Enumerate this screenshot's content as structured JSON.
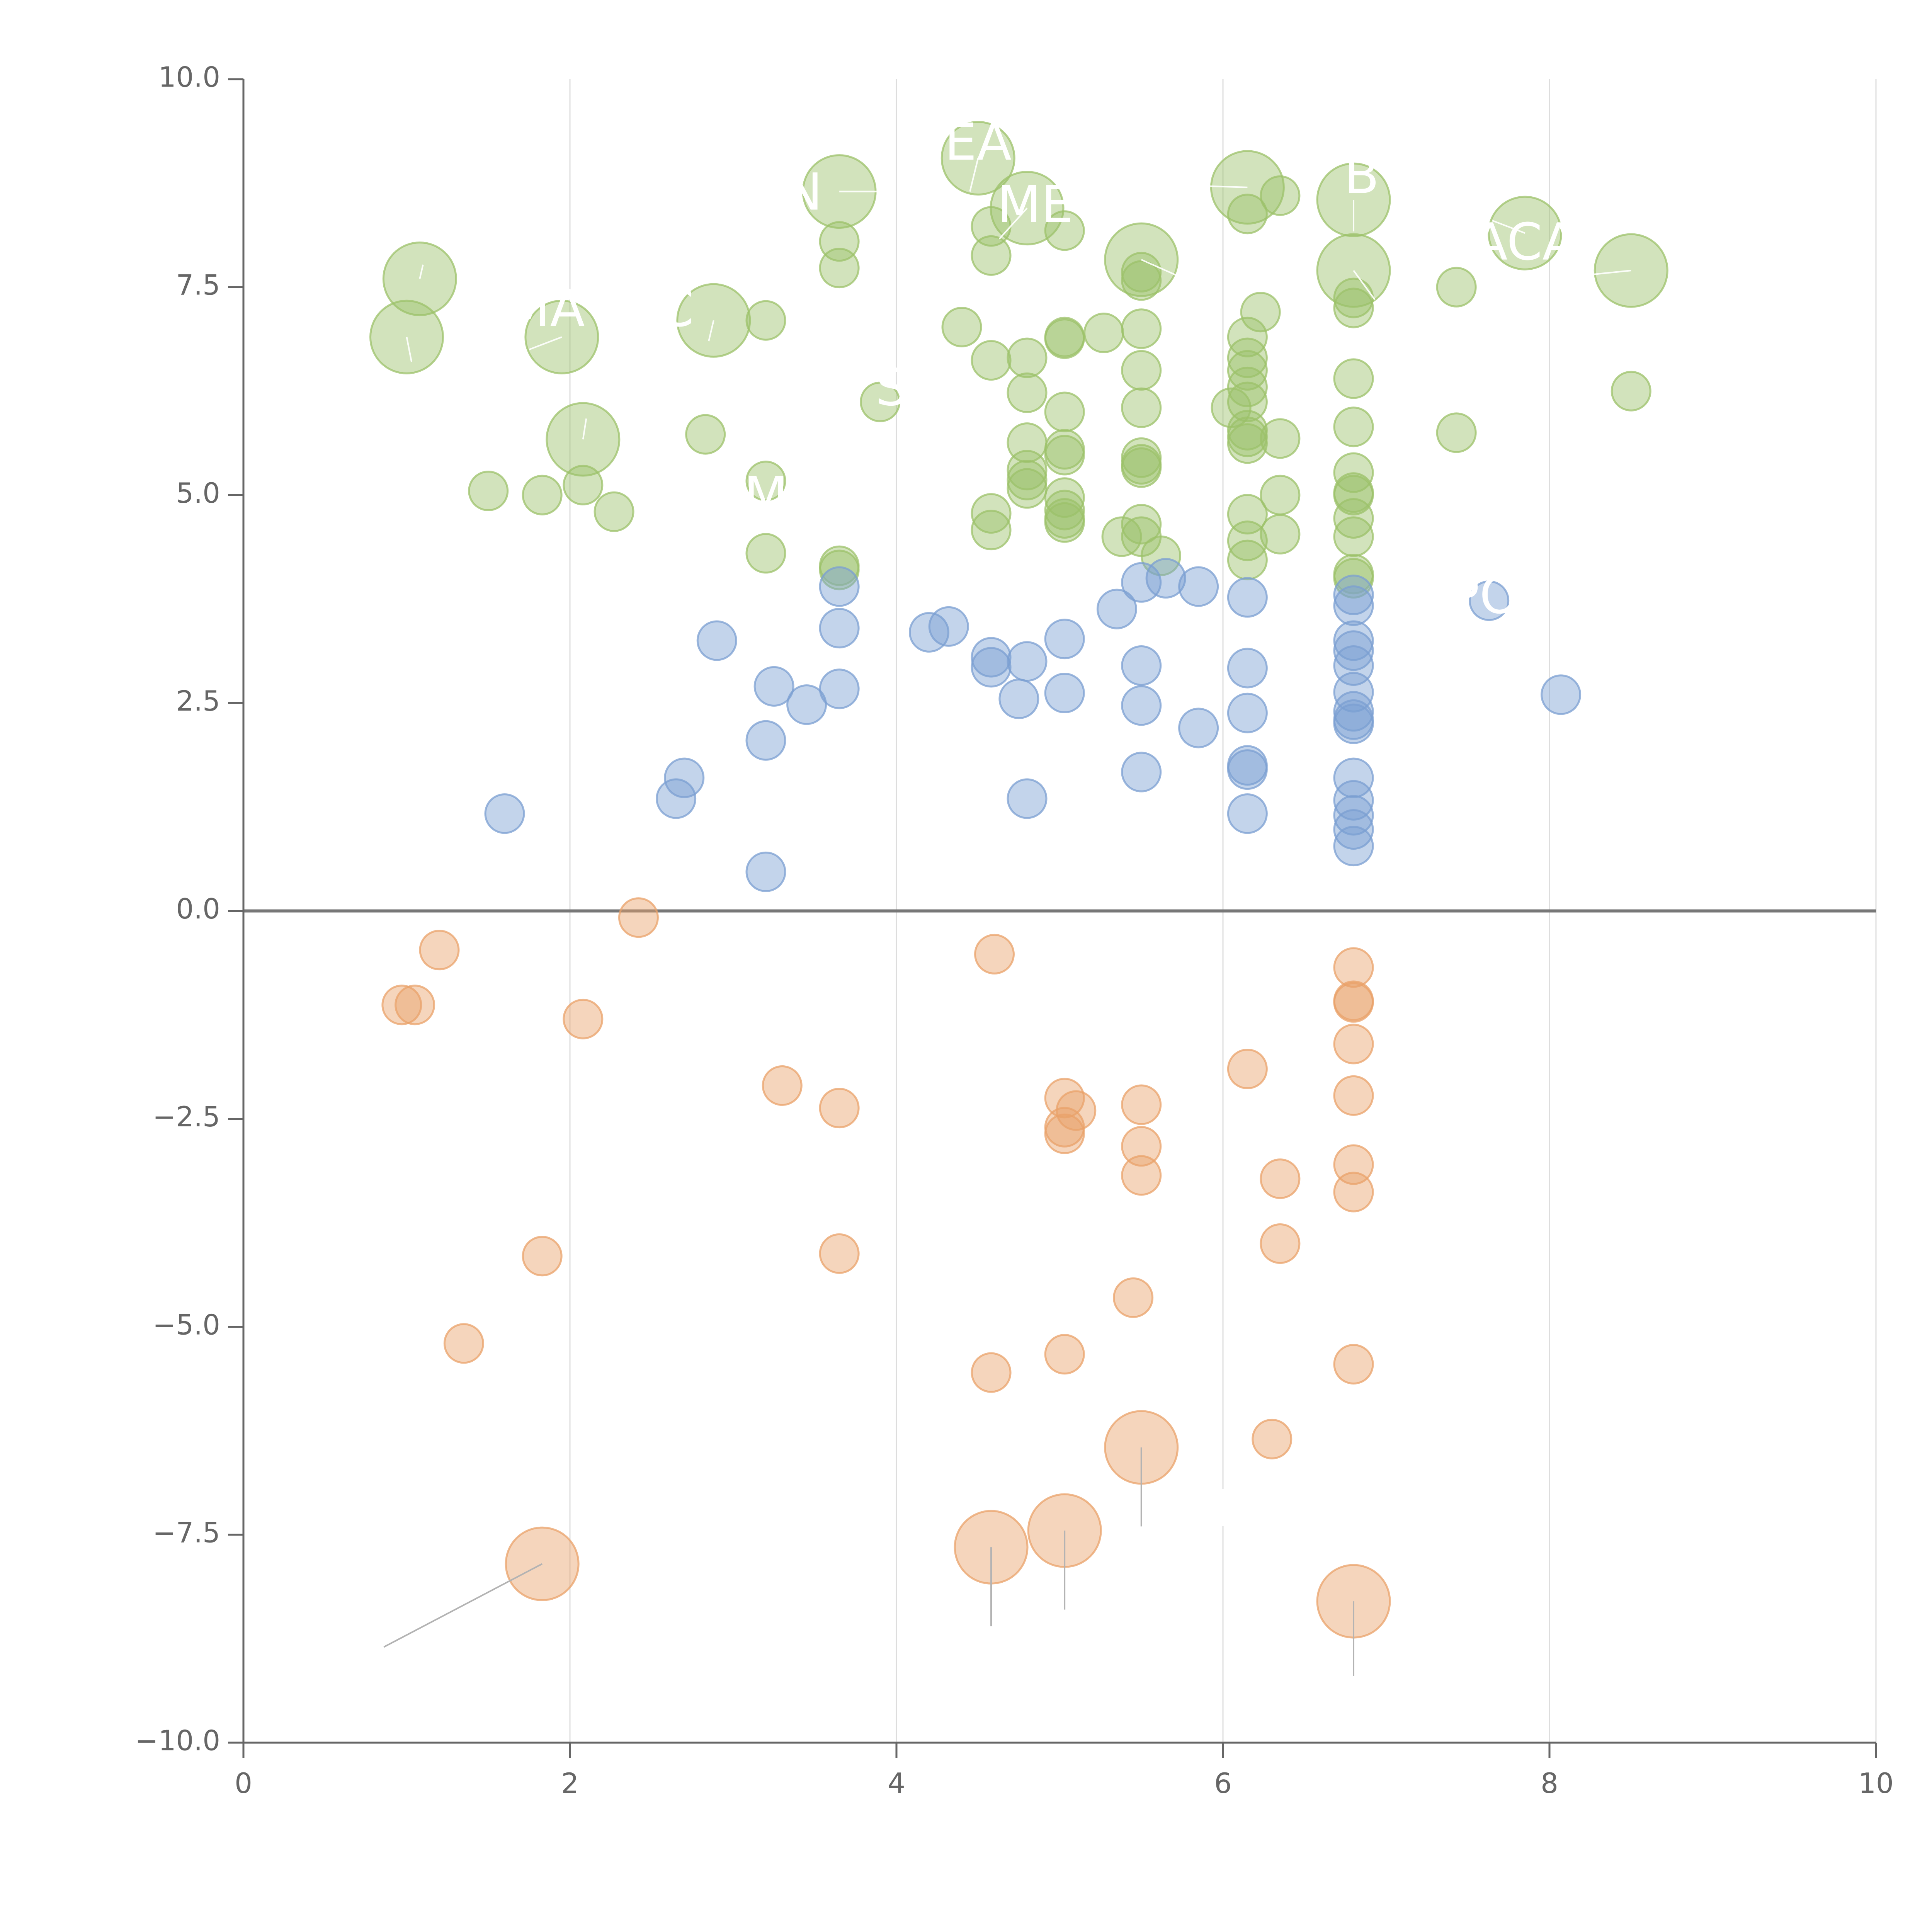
{
  "colors": {
    "green": "#9cc26a",
    "blue": "#7b9fd2",
    "orange": "#e9a16a",
    "label": "#ffffff",
    "leader_light": "#ffffff",
    "leader_dark": "#b3b3b3",
    "axis": "#666666",
    "grid": "#dddddd"
  },
  "chart_data": {
    "type": "scatter",
    "xlim": [
      0,
      10
    ],
    "ylim": [
      -10,
      10
    ],
    "x_ticks": [
      "0",
      "2",
      "4",
      "6",
      "8",
      "10"
    ],
    "y_ticks": [
      "−10.0",
      "−7.5",
      "−5.0",
      "−2.5",
      "0.0",
      "2.5",
      "5.0",
      "7.5",
      "10.0"
    ],
    "grid": "vertical",
    "reference_line_y": 0,
    "series": [
      {
        "color": "green",
        "points": [
          [
            1.08,
            7.6,
            2
          ],
          [
            1.0,
            6.9,
            2
          ],
          [
            1.95,
            6.9,
            2
          ],
          [
            2.08,
            5.67,
            2
          ],
          [
            2.88,
            7.1,
            2
          ],
          [
            3.65,
            8.65,
            2
          ],
          [
            4.5,
            9.05,
            2
          ],
          [
            4.8,
            8.45,
            2
          ],
          [
            5.5,
            7.83,
            2
          ],
          [
            6.15,
            8.7,
            2
          ],
          [
            6.8,
            8.55,
            2
          ],
          [
            6.8,
            7.7,
            2
          ],
          [
            7.85,
            8.15,
            2
          ],
          [
            8.5,
            7.7,
            2
          ],
          [
            1.5,
            5.05,
            1
          ],
          [
            1.83,
            5.0,
            1
          ],
          [
            2.08,
            5.12,
            1
          ],
          [
            2.27,
            4.8,
            1
          ],
          [
            2.83,
            5.73,
            1
          ],
          [
            3.2,
            7.1,
            1
          ],
          [
            3.2,
            5.17,
            1
          ],
          [
            3.2,
            4.3,
            1
          ],
          [
            3.65,
            8.05,
            1
          ],
          [
            3.65,
            7.73,
            1
          ],
          [
            3.65,
            4.15,
            1
          ],
          [
            3.65,
            4.1,
            1
          ],
          [
            3.9,
            6.12,
            1
          ],
          [
            4.4,
            7.02,
            1
          ],
          [
            4.58,
            8.23,
            1
          ],
          [
            4.58,
            7.88,
            1
          ],
          [
            4.58,
            6.62,
            1
          ],
          [
            4.58,
            4.78,
            1
          ],
          [
            4.58,
            4.58,
            1
          ],
          [
            4.8,
            6.65,
            1
          ],
          [
            4.8,
            6.23,
            1
          ],
          [
            4.8,
            5.63,
            1
          ],
          [
            4.8,
            5.3,
            1
          ],
          [
            4.8,
            5.18,
            1
          ],
          [
            4.8,
            5.08,
            1
          ],
          [
            5.03,
            8.18,
            1
          ],
          [
            5.03,
            6.9,
            1
          ],
          [
            5.03,
            6.88,
            1
          ],
          [
            5.03,
            6.0,
            1
          ],
          [
            5.03,
            5.55,
            1
          ],
          [
            5.03,
            5.48,
            1
          ],
          [
            5.03,
            4.97,
            1
          ],
          [
            5.03,
            4.82,
            1
          ],
          [
            5.03,
            4.72,
            1
          ],
          [
            5.03,
            4.67,
            1
          ],
          [
            5.27,
            6.95,
            1
          ],
          [
            5.38,
            4.5,
            1
          ],
          [
            5.5,
            7.68,
            1
          ],
          [
            5.5,
            7.58,
            1
          ],
          [
            5.5,
            7.0,
            1
          ],
          [
            5.5,
            6.5,
            1
          ],
          [
            5.5,
            6.05,
            1
          ],
          [
            5.5,
            5.45,
            1
          ],
          [
            5.5,
            5.37,
            1
          ],
          [
            5.5,
            5.33,
            1
          ],
          [
            5.5,
            4.65,
            1
          ],
          [
            5.5,
            4.5,
            1
          ],
          [
            5.62,
            4.27,
            1
          ],
          [
            6.05,
            6.05,
            1
          ],
          [
            6.15,
            8.38,
            1
          ],
          [
            6.15,
            6.9,
            1
          ],
          [
            6.15,
            6.65,
            1
          ],
          [
            6.15,
            6.5,
            1
          ],
          [
            6.15,
            6.3,
            1
          ],
          [
            6.15,
            6.12,
            1
          ],
          [
            6.15,
            5.78,
            1
          ],
          [
            6.15,
            5.7,
            1
          ],
          [
            6.15,
            5.62,
            1
          ],
          [
            6.15,
            4.77,
            1
          ],
          [
            6.15,
            4.45,
            1
          ],
          [
            6.15,
            4.22,
            1
          ],
          [
            6.23,
            7.2,
            1
          ],
          [
            6.35,
            8.6,
            1
          ],
          [
            6.35,
            5.68,
            1
          ],
          [
            6.35,
            5.0,
            1
          ],
          [
            6.35,
            4.53,
            1
          ],
          [
            6.8,
            7.37,
            1
          ],
          [
            6.8,
            7.25,
            1
          ],
          [
            6.8,
            6.4,
            1
          ],
          [
            6.8,
            5.82,
            1
          ],
          [
            6.8,
            5.27,
            1
          ],
          [
            6.8,
            5.03,
            1
          ],
          [
            6.8,
            5.0,
            1
          ],
          [
            6.8,
            4.72,
            1
          ],
          [
            6.8,
            4.5,
            1
          ],
          [
            6.8,
            4.05,
            1
          ],
          [
            6.8,
            4.0,
            1
          ],
          [
            7.43,
            7.5,
            1
          ],
          [
            7.43,
            5.75,
            1
          ],
          [
            8.5,
            6.25,
            1
          ]
        ]
      },
      {
        "color": "blue",
        "points": [
          [
            1.6,
            1.17,
            1
          ],
          [
            2.65,
            1.35,
            1
          ],
          [
            2.7,
            1.6,
            1
          ],
          [
            2.9,
            3.25,
            1
          ],
          [
            3.2,
            2.05,
            1
          ],
          [
            3.2,
            0.47,
            1
          ],
          [
            3.25,
            2.7,
            1
          ],
          [
            3.45,
            2.48,
            1
          ],
          [
            3.65,
            3.9,
            1
          ],
          [
            3.65,
            3.4,
            1
          ],
          [
            3.65,
            2.67,
            1
          ],
          [
            4.2,
            3.35,
            1
          ],
          [
            4.32,
            3.42,
            1
          ],
          [
            4.58,
            3.05,
            1
          ],
          [
            4.58,
            2.93,
            1
          ],
          [
            4.75,
            2.55,
            1
          ],
          [
            4.8,
            3.0,
            1
          ],
          [
            4.8,
            1.35,
            1
          ],
          [
            5.03,
            3.27,
            1
          ],
          [
            5.03,
            2.62,
            1
          ],
          [
            5.35,
            3.63,
            1
          ],
          [
            5.5,
            3.95,
            1
          ],
          [
            5.5,
            2.95,
            1
          ],
          [
            5.5,
            2.47,
            1
          ],
          [
            5.5,
            1.67,
            1
          ],
          [
            5.65,
            4.0,
            1
          ],
          [
            5.85,
            3.9,
            1
          ],
          [
            5.85,
            2.2,
            1
          ],
          [
            6.15,
            3.77,
            1
          ],
          [
            6.15,
            2.92,
            1
          ],
          [
            6.15,
            2.38,
            1
          ],
          [
            6.15,
            1.75,
            1
          ],
          [
            6.15,
            1.7,
            1
          ],
          [
            6.15,
            1.17,
            1
          ],
          [
            6.8,
            3.8,
            1
          ],
          [
            6.8,
            3.67,
            1
          ],
          [
            6.8,
            3.25,
            1
          ],
          [
            6.8,
            3.13,
            1
          ],
          [
            6.8,
            2.95,
            1
          ],
          [
            6.8,
            2.63,
            1
          ],
          [
            6.8,
            2.4,
            1
          ],
          [
            6.8,
            2.3,
            1
          ],
          [
            6.8,
            2.25,
            1
          ],
          [
            6.8,
            1.6,
            1
          ],
          [
            6.8,
            1.33,
            1
          ],
          [
            6.8,
            1.15,
            1
          ],
          [
            6.8,
            0.98,
            1
          ],
          [
            6.8,
            0.78,
            1
          ],
          [
            7.63,
            3.73,
            1
          ],
          [
            8.07,
            2.6,
            1
          ]
        ]
      },
      {
        "color": "orange",
        "points": [
          [
            0.97,
            -1.13,
            1
          ],
          [
            1.05,
            -1.13,
            1
          ],
          [
            1.2,
            -0.47,
            1
          ],
          [
            1.35,
            -5.2,
            1
          ],
          [
            1.83,
            -4.15,
            1
          ],
          [
            2.08,
            -1.3,
            1
          ],
          [
            2.42,
            -0.08,
            1
          ],
          [
            3.3,
            -2.1,
            1
          ],
          [
            3.65,
            -2.37,
            1
          ],
          [
            3.65,
            -4.12,
            1
          ],
          [
            4.6,
            -0.52,
            1
          ],
          [
            4.58,
            -5.55,
            1
          ],
          [
            5.03,
            -2.25,
            1
          ],
          [
            5.1,
            -2.4,
            1
          ],
          [
            5.03,
            -2.6,
            1
          ],
          [
            5.03,
            -2.68,
            1
          ],
          [
            5.03,
            -5.33,
            1
          ],
          [
            5.45,
            -4.65,
            1
          ],
          [
            5.5,
            -2.33,
            1
          ],
          [
            5.5,
            -2.83,
            1
          ],
          [
            5.5,
            -3.18,
            1
          ],
          [
            6.15,
            -1.9,
            1
          ],
          [
            6.3,
            -6.35,
            1
          ],
          [
            6.35,
            -3.22,
            1
          ],
          [
            6.35,
            -4.0,
            1
          ],
          [
            6.8,
            -0.68,
            1
          ],
          [
            6.8,
            -1.08,
            1
          ],
          [
            6.8,
            -1.1,
            1
          ],
          [
            6.8,
            -1.6,
            1
          ],
          [
            6.8,
            -2.22,
            1
          ],
          [
            6.8,
            -3.05,
            1
          ],
          [
            6.8,
            -3.38,
            1
          ],
          [
            6.8,
            -5.45,
            1
          ],
          [
            1.83,
            -7.85,
            2
          ],
          [
            4.58,
            -7.65,
            2
          ],
          [
            5.03,
            -7.45,
            2
          ],
          [
            5.5,
            -6.45,
            2
          ],
          [
            6.8,
            -8.3,
            2
          ]
        ]
      }
    ],
    "point_labels": [
      {
        "text": "EA",
        "x": 4.5,
        "y": 9.2
      },
      {
        "text": "N",
        "x": 3.43,
        "y": 8.6
      },
      {
        "text": "ME",
        "x": 4.85,
        "y": 8.45
      },
      {
        "text": "B",
        "x": 6.85,
        "y": 8.8
      },
      {
        "text": "ACA",
        "x": 7.85,
        "y": 8.0
      },
      {
        "text": "MA",
        "x": 1.85,
        "y": 7.2
      },
      {
        "text": "C",
        "x": 2.65,
        "y": 7.2
      },
      {
        "text": "S",
        "x": 3.97,
        "y": 6.25
      },
      {
        "text": "M",
        "x": 3.2,
        "y": 4.95
      },
      {
        "text": "PO",
        "x": 7.6,
        "y": 3.75
      },
      {
        "text": "I",
        "x": 6.0,
        "y": -7.23
      }
    ],
    "leaders": [
      {
        "x1": 1.08,
        "y1": 7.6,
        "x2": 1.1,
        "y2": 7.77,
        "tone": "light"
      },
      {
        "x1": 1.0,
        "y1": 6.9,
        "x2": 1.03,
        "y2": 6.6,
        "tone": "light"
      },
      {
        "x1": 1.95,
        "y1": 6.9,
        "x2": 1.75,
        "y2": 6.75,
        "tone": "light"
      },
      {
        "x1": 2.08,
        "y1": 5.67,
        "x2": 2.1,
        "y2": 5.92,
        "tone": "light"
      },
      {
        "x1": 2.88,
        "y1": 7.1,
        "x2": 2.85,
        "y2": 6.85,
        "tone": "light"
      },
      {
        "x1": 3.65,
        "y1": 8.65,
        "x2": 3.9,
        "y2": 8.65,
        "tone": "light"
      },
      {
        "x1": 4.5,
        "y1": 9.05,
        "x2": 4.45,
        "y2": 8.65,
        "tone": "light"
      },
      {
        "x1": 4.8,
        "y1": 8.45,
        "x2": 4.63,
        "y2": 8.08,
        "tone": "light"
      },
      {
        "x1": 5.5,
        "y1": 7.83,
        "x2": 5.73,
        "y2": 7.63,
        "tone": "light"
      },
      {
        "x1": 6.15,
        "y1": 8.7,
        "x2": 5.8,
        "y2": 8.72,
        "tone": "light"
      },
      {
        "x1": 6.8,
        "y1": 8.55,
        "x2": 6.8,
        "y2": 8.17,
        "tone": "light"
      },
      {
        "x1": 6.8,
        "y1": 7.7,
        "x2": 6.93,
        "y2": 7.35,
        "tone": "light"
      },
      {
        "x1": 7.85,
        "y1": 8.15,
        "x2": 7.65,
        "y2": 8.3,
        "tone": "light"
      },
      {
        "x1": 8.5,
        "y1": 7.7,
        "x2": 8.1,
        "y2": 7.62,
        "tone": "light"
      },
      {
        "x1": 1.83,
        "y1": -7.85,
        "x2": 0.86,
        "y2": -8.85,
        "tone": "dark"
      },
      {
        "x1": 4.58,
        "y1": -7.65,
        "x2": 4.58,
        "y2": -8.6,
        "tone": "dark"
      },
      {
        "x1": 5.03,
        "y1": -7.45,
        "x2": 5.03,
        "y2": -8.4,
        "tone": "dark"
      },
      {
        "x1": 5.5,
        "y1": -6.45,
        "x2": 5.5,
        "y2": -7.4,
        "tone": "dark"
      },
      {
        "x1": 6.8,
        "y1": -8.3,
        "x2": 6.8,
        "y2": -9.2,
        "tone": "dark"
      }
    ]
  }
}
